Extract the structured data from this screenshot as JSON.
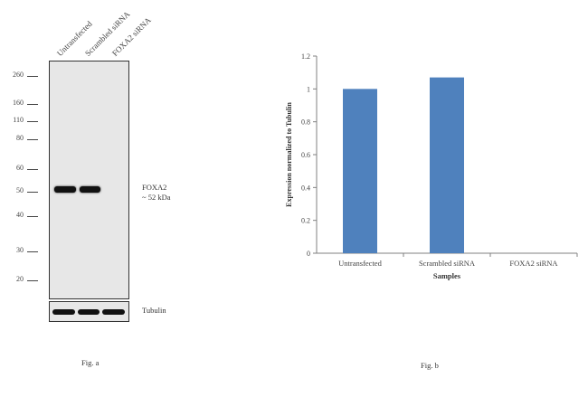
{
  "fig_a": {
    "lanes": [
      "Untransfected",
      "Scrambled siRNA",
      "FOXA2 siRNA"
    ],
    "mw_markers": [
      "260",
      "160",
      "110",
      "80",
      "60",
      "50",
      "40",
      "30",
      "20"
    ],
    "target_label": "FOXA2",
    "target_size": "~ 52 kDa",
    "loading_control": "Tubulin",
    "caption": "Fig. a"
  },
  "fig_b": {
    "caption": "Fig. b"
  },
  "chart_data": {
    "type": "bar",
    "title": "",
    "categories": [
      "Untransfected",
      "Scrambled siRNA",
      "FOXA2 siRNA"
    ],
    "values": [
      1.0,
      1.07,
      0.0
    ],
    "xlabel": "Samples",
    "ylabel": "Expression normalized to Tubulin",
    "ylim": [
      0,
      1.2
    ],
    "yticks": [
      "0",
      "0.2",
      "0.4",
      "0.6",
      "0.8",
      "1",
      "1.2"
    ],
    "bar_color": "#4f81bd",
    "grid": false,
    "legend": "none"
  }
}
